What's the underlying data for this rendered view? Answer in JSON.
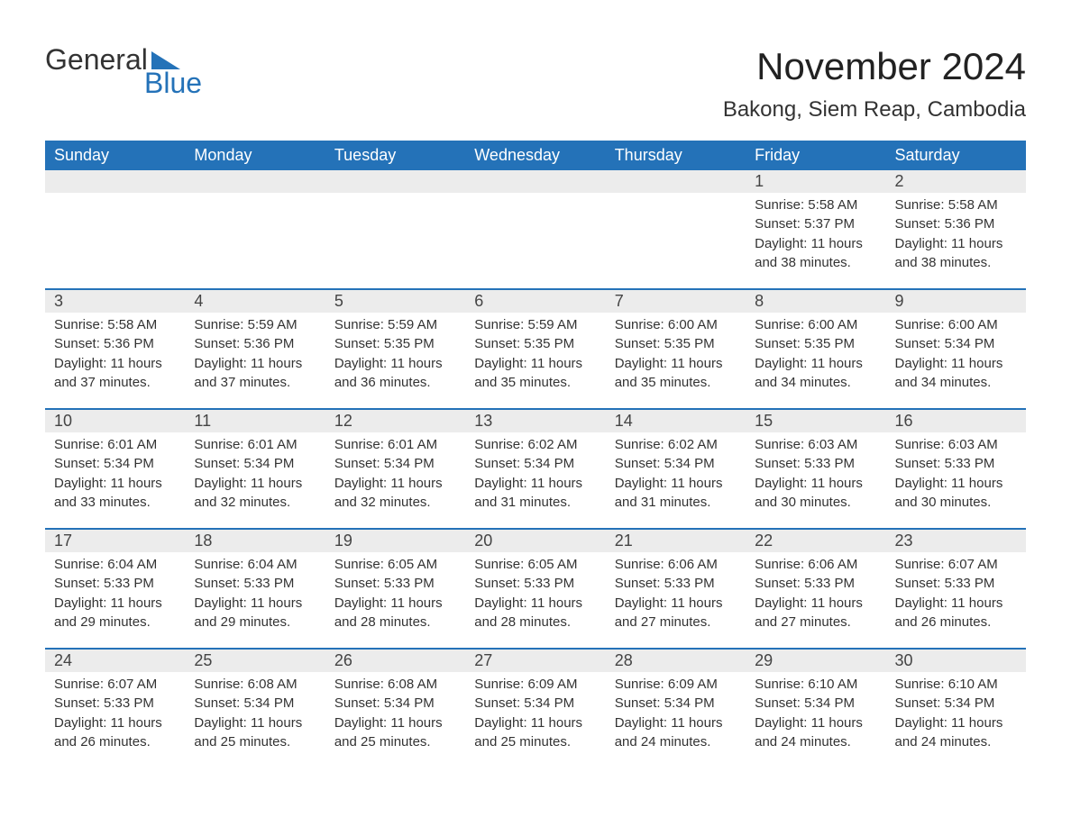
{
  "colors": {
    "brand_blue": "#2472b8",
    "header_bg": "#2472b8",
    "header_text": "#ffffff",
    "daynum_bg": "#ececec",
    "daynum_text": "#444444",
    "body_text": "#333333",
    "page_bg": "#ffffff",
    "week_border": "#2472b8"
  },
  "logo": {
    "word_general": "General",
    "word_blue": "Blue"
  },
  "title": "November 2024",
  "location": "Bakong, Siem Reap, Cambodia",
  "weekdays": [
    "Sunday",
    "Monday",
    "Tuesday",
    "Wednesday",
    "Thursday",
    "Friday",
    "Saturday"
  ],
  "weeks": [
    [
      null,
      null,
      null,
      null,
      null,
      {
        "num": "1",
        "sunrise": "Sunrise: 5:58 AM",
        "sunset": "Sunset: 5:37 PM",
        "day1": "Daylight: 11 hours",
        "day2": "and 38 minutes."
      },
      {
        "num": "2",
        "sunrise": "Sunrise: 5:58 AM",
        "sunset": "Sunset: 5:36 PM",
        "day1": "Daylight: 11 hours",
        "day2": "and 38 minutes."
      }
    ],
    [
      {
        "num": "3",
        "sunrise": "Sunrise: 5:58 AM",
        "sunset": "Sunset: 5:36 PM",
        "day1": "Daylight: 11 hours",
        "day2": "and 37 minutes."
      },
      {
        "num": "4",
        "sunrise": "Sunrise: 5:59 AM",
        "sunset": "Sunset: 5:36 PM",
        "day1": "Daylight: 11 hours",
        "day2": "and 37 minutes."
      },
      {
        "num": "5",
        "sunrise": "Sunrise: 5:59 AM",
        "sunset": "Sunset: 5:35 PM",
        "day1": "Daylight: 11 hours",
        "day2": "and 36 minutes."
      },
      {
        "num": "6",
        "sunrise": "Sunrise: 5:59 AM",
        "sunset": "Sunset: 5:35 PM",
        "day1": "Daylight: 11 hours",
        "day2": "and 35 minutes."
      },
      {
        "num": "7",
        "sunrise": "Sunrise: 6:00 AM",
        "sunset": "Sunset: 5:35 PM",
        "day1": "Daylight: 11 hours",
        "day2": "and 35 minutes."
      },
      {
        "num": "8",
        "sunrise": "Sunrise: 6:00 AM",
        "sunset": "Sunset: 5:35 PM",
        "day1": "Daylight: 11 hours",
        "day2": "and 34 minutes."
      },
      {
        "num": "9",
        "sunrise": "Sunrise: 6:00 AM",
        "sunset": "Sunset: 5:34 PM",
        "day1": "Daylight: 11 hours",
        "day2": "and 34 minutes."
      }
    ],
    [
      {
        "num": "10",
        "sunrise": "Sunrise: 6:01 AM",
        "sunset": "Sunset: 5:34 PM",
        "day1": "Daylight: 11 hours",
        "day2": "and 33 minutes."
      },
      {
        "num": "11",
        "sunrise": "Sunrise: 6:01 AM",
        "sunset": "Sunset: 5:34 PM",
        "day1": "Daylight: 11 hours",
        "day2": "and 32 minutes."
      },
      {
        "num": "12",
        "sunrise": "Sunrise: 6:01 AM",
        "sunset": "Sunset: 5:34 PM",
        "day1": "Daylight: 11 hours",
        "day2": "and 32 minutes."
      },
      {
        "num": "13",
        "sunrise": "Sunrise: 6:02 AM",
        "sunset": "Sunset: 5:34 PM",
        "day1": "Daylight: 11 hours",
        "day2": "and 31 minutes."
      },
      {
        "num": "14",
        "sunrise": "Sunrise: 6:02 AM",
        "sunset": "Sunset: 5:34 PM",
        "day1": "Daylight: 11 hours",
        "day2": "and 31 minutes."
      },
      {
        "num": "15",
        "sunrise": "Sunrise: 6:03 AM",
        "sunset": "Sunset: 5:33 PM",
        "day1": "Daylight: 11 hours",
        "day2": "and 30 minutes."
      },
      {
        "num": "16",
        "sunrise": "Sunrise: 6:03 AM",
        "sunset": "Sunset: 5:33 PM",
        "day1": "Daylight: 11 hours",
        "day2": "and 30 minutes."
      }
    ],
    [
      {
        "num": "17",
        "sunrise": "Sunrise: 6:04 AM",
        "sunset": "Sunset: 5:33 PM",
        "day1": "Daylight: 11 hours",
        "day2": "and 29 minutes."
      },
      {
        "num": "18",
        "sunrise": "Sunrise: 6:04 AM",
        "sunset": "Sunset: 5:33 PM",
        "day1": "Daylight: 11 hours",
        "day2": "and 29 minutes."
      },
      {
        "num": "19",
        "sunrise": "Sunrise: 6:05 AM",
        "sunset": "Sunset: 5:33 PM",
        "day1": "Daylight: 11 hours",
        "day2": "and 28 minutes."
      },
      {
        "num": "20",
        "sunrise": "Sunrise: 6:05 AM",
        "sunset": "Sunset: 5:33 PM",
        "day1": "Daylight: 11 hours",
        "day2": "and 28 minutes."
      },
      {
        "num": "21",
        "sunrise": "Sunrise: 6:06 AM",
        "sunset": "Sunset: 5:33 PM",
        "day1": "Daylight: 11 hours",
        "day2": "and 27 minutes."
      },
      {
        "num": "22",
        "sunrise": "Sunrise: 6:06 AM",
        "sunset": "Sunset: 5:33 PM",
        "day1": "Daylight: 11 hours",
        "day2": "and 27 minutes."
      },
      {
        "num": "23",
        "sunrise": "Sunrise: 6:07 AM",
        "sunset": "Sunset: 5:33 PM",
        "day1": "Daylight: 11 hours",
        "day2": "and 26 minutes."
      }
    ],
    [
      {
        "num": "24",
        "sunrise": "Sunrise: 6:07 AM",
        "sunset": "Sunset: 5:33 PM",
        "day1": "Daylight: 11 hours",
        "day2": "and 26 minutes."
      },
      {
        "num": "25",
        "sunrise": "Sunrise: 6:08 AM",
        "sunset": "Sunset: 5:34 PM",
        "day1": "Daylight: 11 hours",
        "day2": "and 25 minutes."
      },
      {
        "num": "26",
        "sunrise": "Sunrise: 6:08 AM",
        "sunset": "Sunset: 5:34 PM",
        "day1": "Daylight: 11 hours",
        "day2": "and 25 minutes."
      },
      {
        "num": "27",
        "sunrise": "Sunrise: 6:09 AM",
        "sunset": "Sunset: 5:34 PM",
        "day1": "Daylight: 11 hours",
        "day2": "and 25 minutes."
      },
      {
        "num": "28",
        "sunrise": "Sunrise: 6:09 AM",
        "sunset": "Sunset: 5:34 PM",
        "day1": "Daylight: 11 hours",
        "day2": "and 24 minutes."
      },
      {
        "num": "29",
        "sunrise": "Sunrise: 6:10 AM",
        "sunset": "Sunset: 5:34 PM",
        "day1": "Daylight: 11 hours",
        "day2": "and 24 minutes."
      },
      {
        "num": "30",
        "sunrise": "Sunrise: 6:10 AM",
        "sunset": "Sunset: 5:34 PM",
        "day1": "Daylight: 11 hours",
        "day2": "and 24 minutes."
      }
    ]
  ]
}
